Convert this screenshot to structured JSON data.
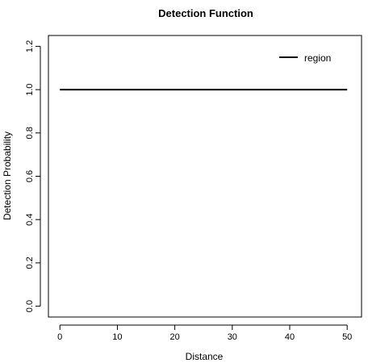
{
  "chart_data": {
    "type": "line",
    "title": "Detection Function",
    "xlabel": "Distance",
    "ylabel": "Detection Probability",
    "xlim": [
      -2,
      52.5
    ],
    "ylim": [
      -0.05,
      1.25
    ],
    "x_ticks": [
      0,
      10,
      20,
      30,
      40,
      50
    ],
    "x_tick_labels": [
      "0",
      "10",
      "20",
      "30",
      "40",
      "50"
    ],
    "y_ticks": [
      0.0,
      0.2,
      0.4,
      0.6,
      0.8,
      1.0,
      1.2
    ],
    "y_tick_labels": [
      "0.0",
      "0.2",
      "0.4",
      "0.6",
      "0.8",
      "1.0",
      "1.2"
    ],
    "grid": false,
    "legend": {
      "position": "top-right",
      "entries": [
        "region"
      ]
    },
    "series": [
      {
        "name": "region",
        "color": "#000000",
        "x": [
          0,
          50
        ],
        "y": [
          1.0,
          1.0
        ]
      }
    ]
  }
}
